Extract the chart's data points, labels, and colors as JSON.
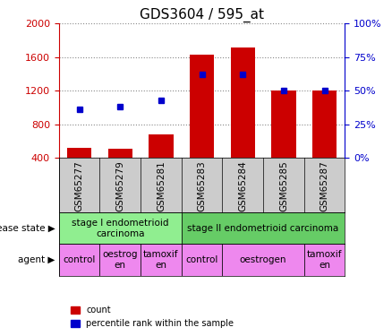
{
  "title": "GDS3604 / 595_at",
  "samples": [
    "GSM65277",
    "GSM65279",
    "GSM65281",
    "GSM65283",
    "GSM65284",
    "GSM65285",
    "GSM65287"
  ],
  "counts": [
    520,
    510,
    680,
    1630,
    1720,
    1200,
    1200
  ],
  "percentile_ranks": [
    36,
    38,
    43,
    62,
    62,
    50,
    50
  ],
  "ylim_left": [
    400,
    2000
  ],
  "ylim_right": [
    0,
    100
  ],
  "yticks_left": [
    400,
    800,
    1200,
    1600,
    2000
  ],
  "yticks_right": [
    0,
    25,
    50,
    75,
    100
  ],
  "bar_color": "#cc0000",
  "dot_color": "#0000cc",
  "disease_state": [
    {
      "label": "stage I endometrioid\ncarcinoma",
      "span": [
        0,
        3
      ],
      "color": "#90ee90"
    },
    {
      "label": "stage II endometrioid carcinoma",
      "span": [
        3,
        7
      ],
      "color": "#66cc66"
    }
  ],
  "agent": [
    {
      "label": "control",
      "span": [
        0,
        1
      ],
      "color": "#ee88ee"
    },
    {
      "label": "oestrog\nen",
      "span": [
        1,
        2
      ],
      "color": "#ee88ee"
    },
    {
      "label": "tamoxif\nen",
      "span": [
        2,
        3
      ],
      "color": "#ee88ee"
    },
    {
      "label": "control",
      "span": [
        3,
        4
      ],
      "color": "#ee88ee"
    },
    {
      "label": "oestrogen",
      "span": [
        4,
        6
      ],
      "color": "#ee88ee"
    },
    {
      "label": "tamoxif\nen",
      "span": [
        6,
        7
      ],
      "color": "#ee88ee"
    }
  ],
  "left_label_color": "#cc0000",
  "right_label_color": "#0000cc",
  "grid_color": "#888888",
  "bg_color": "#ffffff",
  "sample_bg_color": "#cccccc"
}
